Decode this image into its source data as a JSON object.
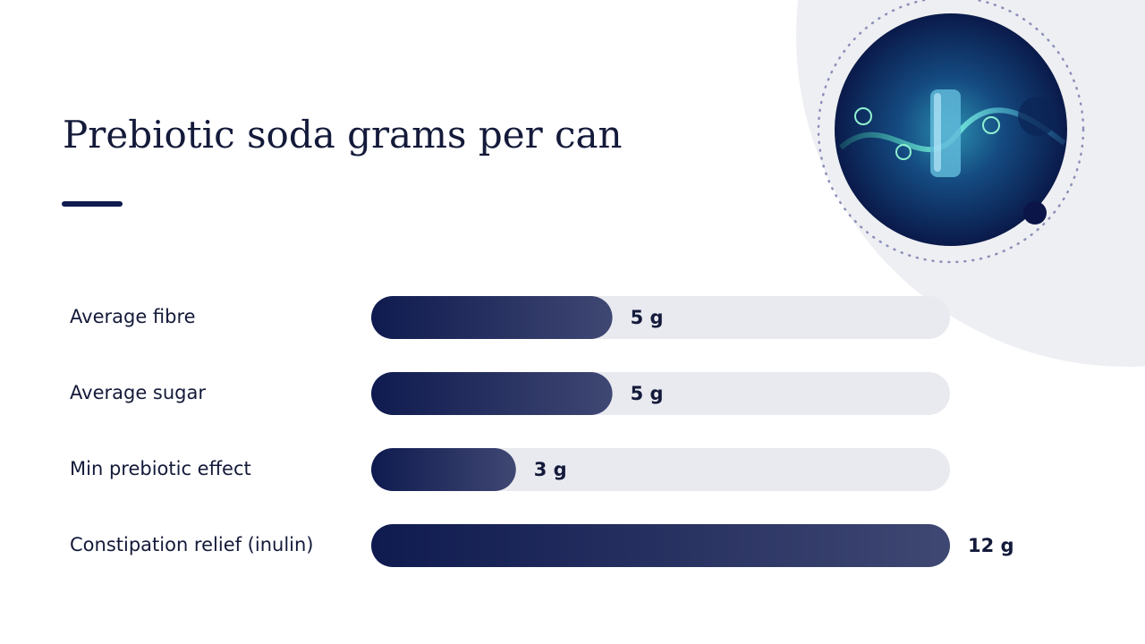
{
  "chart_data": {
    "type": "bar",
    "orientation": "horizontal",
    "title": "Prebiotic soda grams per can",
    "categories": [
      "Average fibre",
      "Average sugar",
      "Min prebiotic effect",
      "Constipation relief (inulin)"
    ],
    "values": [
      5,
      5,
      3,
      12
    ],
    "value_labels": [
      "5 g",
      "5 g",
      "3 g",
      "12 g"
    ],
    "color": "#0f1a4f",
    "xlim": [
      0,
      12
    ]
  }
}
